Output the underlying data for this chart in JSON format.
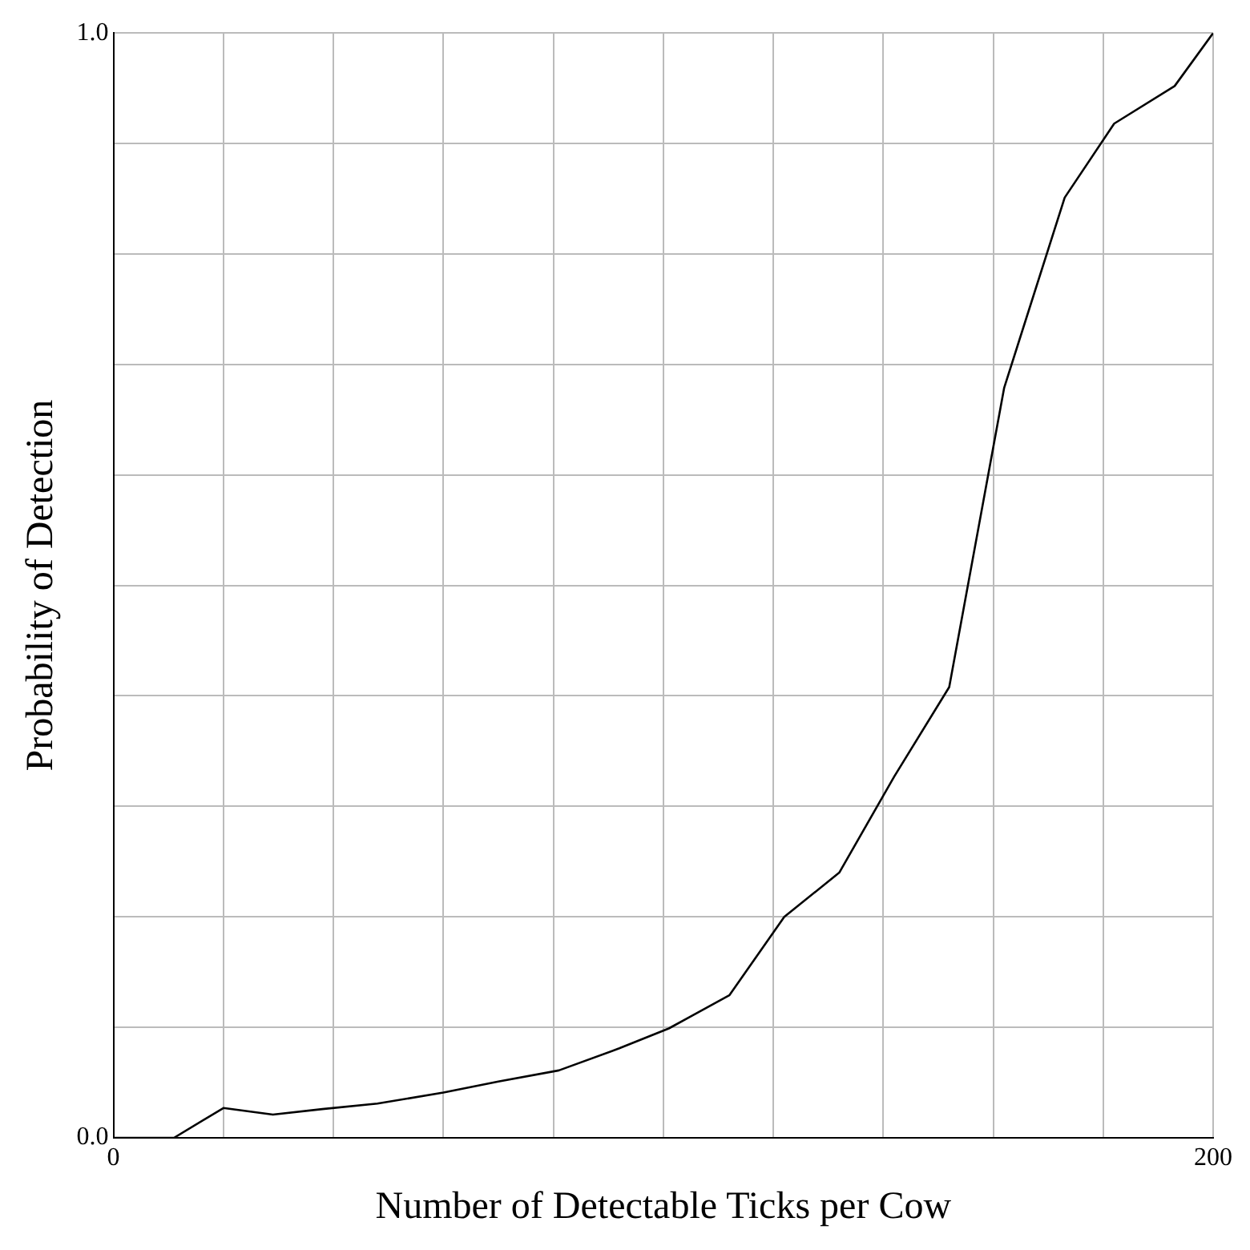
{
  "chart_data": {
    "type": "line",
    "xlabel": "Number of Detectable Ticks per Cow",
    "ylabel": "Probability of Detection",
    "x": [
      0,
      11,
      20,
      29,
      38,
      48,
      60,
      70,
      81,
      92,
      101,
      112,
      122,
      132,
      142,
      152,
      162,
      173,
      182,
      193,
      200
    ],
    "series": [
      {
        "color": "#000000",
        "values": [
          0,
          0,
          0.027,
          0.021,
          0.026,
          0.031,
          0.041,
          0.051,
          0.061,
          0.081,
          0.099,
          0.129,
          0.2,
          0.24,
          0.327,
          0.408,
          0.679,
          0.851,
          0.918,
          0.952,
          1.0
        ]
      }
    ],
    "xlim": [
      0,
      200
    ],
    "xticks": [
      0,
      {
        "value": 20,
        "label": null
      },
      {
        "value": 40,
        "label": null
      },
      {
        "value": 60,
        "label": null
      },
      {
        "value": 80,
        "label": null
      },
      {
        "value": 100,
        "label": null
      },
      {
        "value": 120,
        "label": null
      },
      {
        "value": 140,
        "label": null
      },
      {
        "value": 160,
        "label": null
      },
      {
        "value": 180,
        "label": null
      },
      200
    ],
    "ylim": [
      0,
      1
    ],
    "yticks": [
      {
        "value": 0,
        "label": "0.0"
      },
      {
        "value": 0.1,
        "label": null
      },
      {
        "value": 0.2,
        "label": null
      },
      {
        "value": 0.3,
        "label": null
      },
      {
        "value": 0.4,
        "label": null
      },
      {
        "value": 0.5,
        "label": null
      },
      {
        "value": 0.6,
        "label": null
      },
      {
        "value": 0.7,
        "label": null
      },
      {
        "value": 0.8,
        "label": null
      },
      {
        "value": 0.9,
        "label": null
      },
      {
        "value": 1,
        "label": "1.0"
      }
    ],
    "grid": true,
    "legend": false,
    "marker": "none",
    "line_style": "solid"
  }
}
